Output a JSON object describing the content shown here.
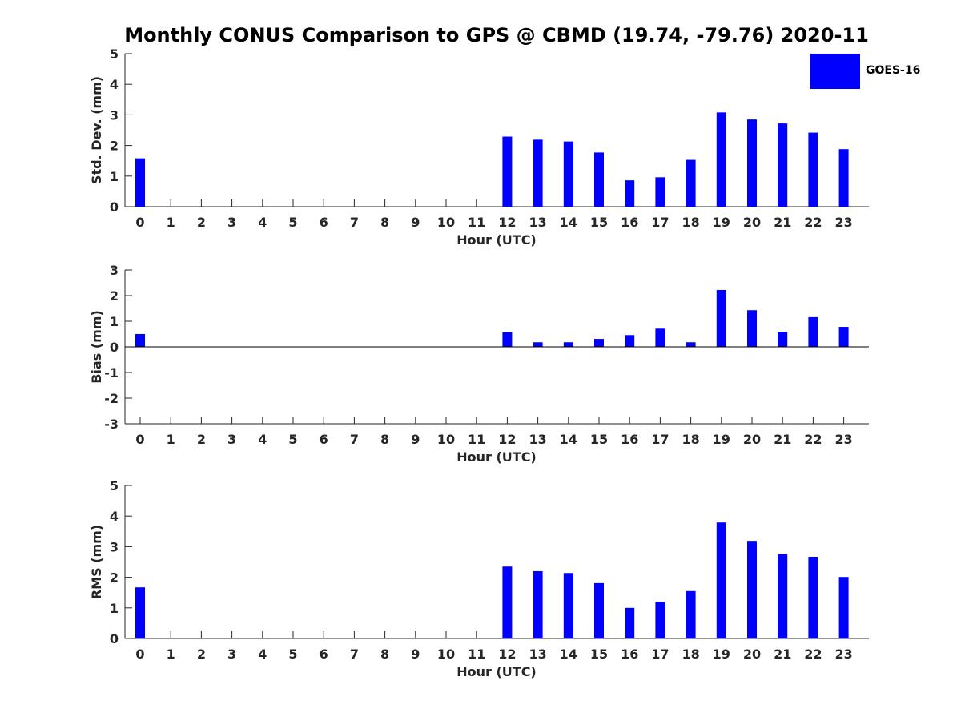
{
  "title": "Monthly CONUS Comparison to GPS @ CBMD (19.74, -79.76) 2020-11",
  "legend": {
    "label": "GOES-16",
    "color": "#0000ff"
  },
  "chart_data": [
    {
      "type": "bar",
      "xlabel": "Hour (UTC)",
      "ylabel": "Std. Dev. (mm)",
      "ylim": [
        0,
        5
      ],
      "yticks": [
        0,
        1,
        2,
        3,
        4,
        5
      ],
      "categories": [
        "0",
        "1",
        "2",
        "3",
        "4",
        "5",
        "6",
        "7",
        "8",
        "9",
        "10",
        "11",
        "12",
        "13",
        "14",
        "15",
        "16",
        "17",
        "18",
        "19",
        "20",
        "21",
        "22",
        "23"
      ],
      "series": [
        {
          "name": "GOES-16",
          "values": [
            1.58,
            null,
            null,
            null,
            null,
            null,
            null,
            null,
            null,
            null,
            null,
            null,
            2.29,
            2.19,
            2.13,
            1.77,
            0.86,
            0.96,
            1.53,
            3.08,
            2.85,
            2.72,
            2.42,
            1.88
          ]
        }
      ]
    },
    {
      "type": "bar",
      "xlabel": "Hour (UTC)",
      "ylabel": "Bias (mm)",
      "ylim": [
        -3,
        3
      ],
      "yticks": [
        -3,
        -2,
        -1,
        0,
        1,
        2,
        3
      ],
      "categories": [
        "0",
        "1",
        "2",
        "3",
        "4",
        "5",
        "6",
        "7",
        "8",
        "9",
        "10",
        "11",
        "12",
        "13",
        "14",
        "15",
        "16",
        "17",
        "18",
        "19",
        "20",
        "21",
        "22",
        "23"
      ],
      "series": [
        {
          "name": "GOES-16",
          "values": [
            0.5,
            null,
            null,
            null,
            null,
            null,
            null,
            null,
            null,
            null,
            null,
            null,
            0.57,
            0.18,
            0.18,
            0.31,
            0.46,
            0.71,
            0.18,
            2.22,
            1.43,
            0.59,
            1.16,
            0.78
          ]
        }
      ]
    },
    {
      "type": "bar",
      "xlabel": "Hour (UTC)",
      "ylabel": "RMS (mm)",
      "ylim": [
        0,
        5
      ],
      "yticks": [
        0,
        1,
        2,
        3,
        4,
        5
      ],
      "categories": [
        "0",
        "1",
        "2",
        "3",
        "4",
        "5",
        "6",
        "7",
        "8",
        "9",
        "10",
        "11",
        "12",
        "13",
        "14",
        "15",
        "16",
        "17",
        "18",
        "19",
        "20",
        "21",
        "22",
        "23"
      ],
      "series": [
        {
          "name": "GOES-16",
          "values": [
            1.67,
            null,
            null,
            null,
            null,
            null,
            null,
            null,
            null,
            null,
            null,
            null,
            2.35,
            2.2,
            2.14,
            1.81,
            1.0,
            1.2,
            1.55,
            3.79,
            3.19,
            2.76,
            2.67,
            2.01
          ]
        }
      ]
    }
  ]
}
